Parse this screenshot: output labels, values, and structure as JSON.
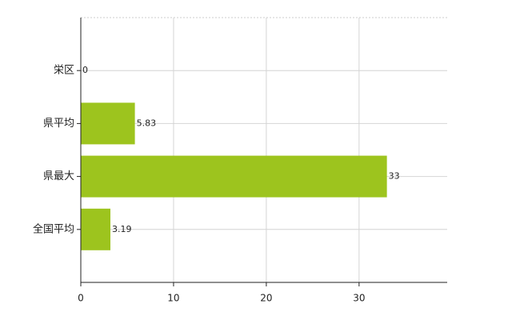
{
  "chart_data": {
    "type": "bar",
    "orientation": "horizontal",
    "categories": [
      "栄区",
      "県平均",
      "県最大",
      "全国平均"
    ],
    "values": [
      0,
      5.83,
      33,
      3.19
    ],
    "color": "#9dc41e",
    "xlim": [
      0,
      39.5
    ],
    "xticks": [
      0,
      10,
      20,
      30
    ],
    "grid": true
  }
}
